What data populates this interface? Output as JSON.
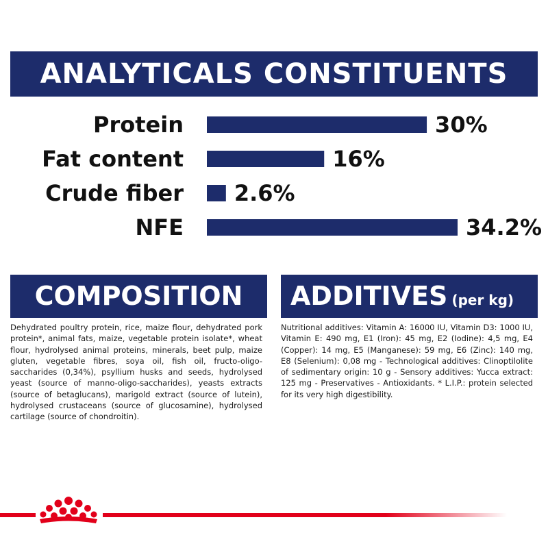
{
  "analyticals": {
    "title": "ANALYTICALS CONSTITUENTS"
  },
  "chart_data": {
    "type": "bar",
    "orientation": "horizontal",
    "title": "ANALYTICALS CONSTITUENTS",
    "categories": [
      "Protein",
      "Fat content",
      "Crude fiber",
      "NFE"
    ],
    "values": [
      30,
      16,
      2.6,
      34.2
    ],
    "value_labels": [
      "30%",
      "16%",
      "2.6%",
      "34.2%"
    ],
    "unit": "%",
    "xlim": [
      0,
      34.2
    ],
    "bar_color": "#1d2c6b",
    "grid": false,
    "legend": "none"
  },
  "composition": {
    "title": "COMPOSITION",
    "text": "Dehydrated poultry protein, rice, maize flour, dehydrated pork protein*, animal fats, maize, vegetable protein isolate*, wheat flour, hydrolysed animal proteins, minerals, beet pulp, maize gluten, vegetable fibres, soya oil, fish oil, fructo-oligo-saccharides (0,34%), psyllium husks and seeds, hydrolysed yeast (source of manno-oligo-saccharides), yeasts extracts (source of betaglucans), marigold extract (source of lutein), hydrolysed crustaceans (source of glucosamine), hydrolysed cartilage (source of chondroitin)."
  },
  "additives": {
    "title": "ADDITIVES",
    "title_suffix": "(per kg)",
    "text": "Nutritional additives: Vitamin A: 16000 IU, Vitamin D3: 1000 IU, Vitamin E: 490 mg, E1 (Iron): 45 mg, E2 (Iodine): 4,5 mg, E4 (Copper): 14 mg, E5 (Manganese): 59 mg, E6 (Zinc): 140 mg, E8 (Selenium): 0,08 mg - Technological additives: Clinoptilolite of sedimentary origin: 10 g - Sensory additives: Yucca extract: 125 mg - Preservatives - Antioxidants. * L.I.P.: protein selected for its very high digestibility."
  },
  "colors": {
    "brand_blue": "#1d2c6b",
    "brand_red": "#e2001a",
    "text": "#1a1a1a"
  },
  "footer": {
    "logo_icon": "royal-crown-icon"
  }
}
